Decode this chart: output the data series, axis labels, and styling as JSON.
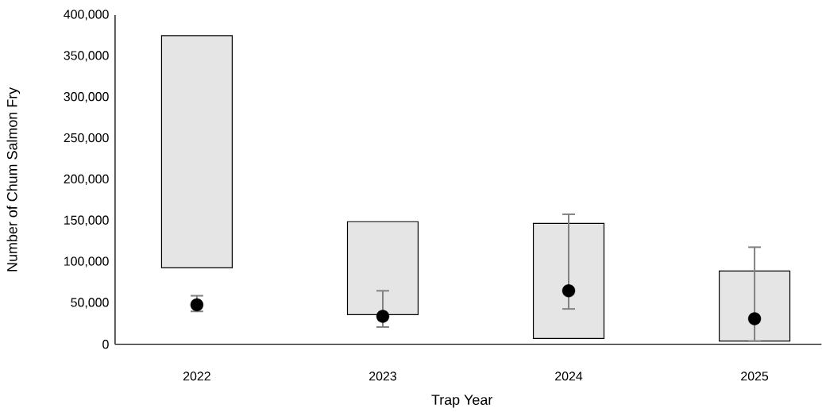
{
  "chart_data": {
    "type": "bar",
    "xlabel": "Trap Year",
    "ylabel": "Number of Chum Salmon Fry",
    "categories": [
      "2022",
      "2023",
      "2024",
      "2025"
    ],
    "series": [
      {
        "color": "#e5e5e5",
        "base": [
          93000,
          36000,
          7000,
          4000
        ],
        "values": [
          282000,
          113000,
          140000,
          85000
        ]
      },
      {
        "type": "scatter",
        "color": "#000000",
        "values": [
          48000,
          34000,
          65000,
          31000
        ],
        "errors": [
          [
            40000,
            59000
          ],
          [
            21000,
            65000
          ],
          [
            43000,
            158000
          ],
          [
            4000,
            118000
          ]
        ]
      }
    ],
    "ylim": [
      0,
      400000
    ],
    "yticks": [
      0,
      {
        "value": 50000,
        "label": "50,000"
      },
      {
        "value": 100000,
        "label": "100,000"
      },
      {
        "value": 150000,
        "label": "150,000"
      },
      {
        "value": 200000,
        "label": "200,000"
      },
      {
        "value": 250000,
        "label": "250,000"
      },
      {
        "value": 300000,
        "label": "300,000"
      },
      {
        "value": 350000,
        "label": "350,000"
      },
      {
        "value": 400000,
        "label": "400,000"
      }
    ],
    "marker": "circle",
    "grid": false
  }
}
